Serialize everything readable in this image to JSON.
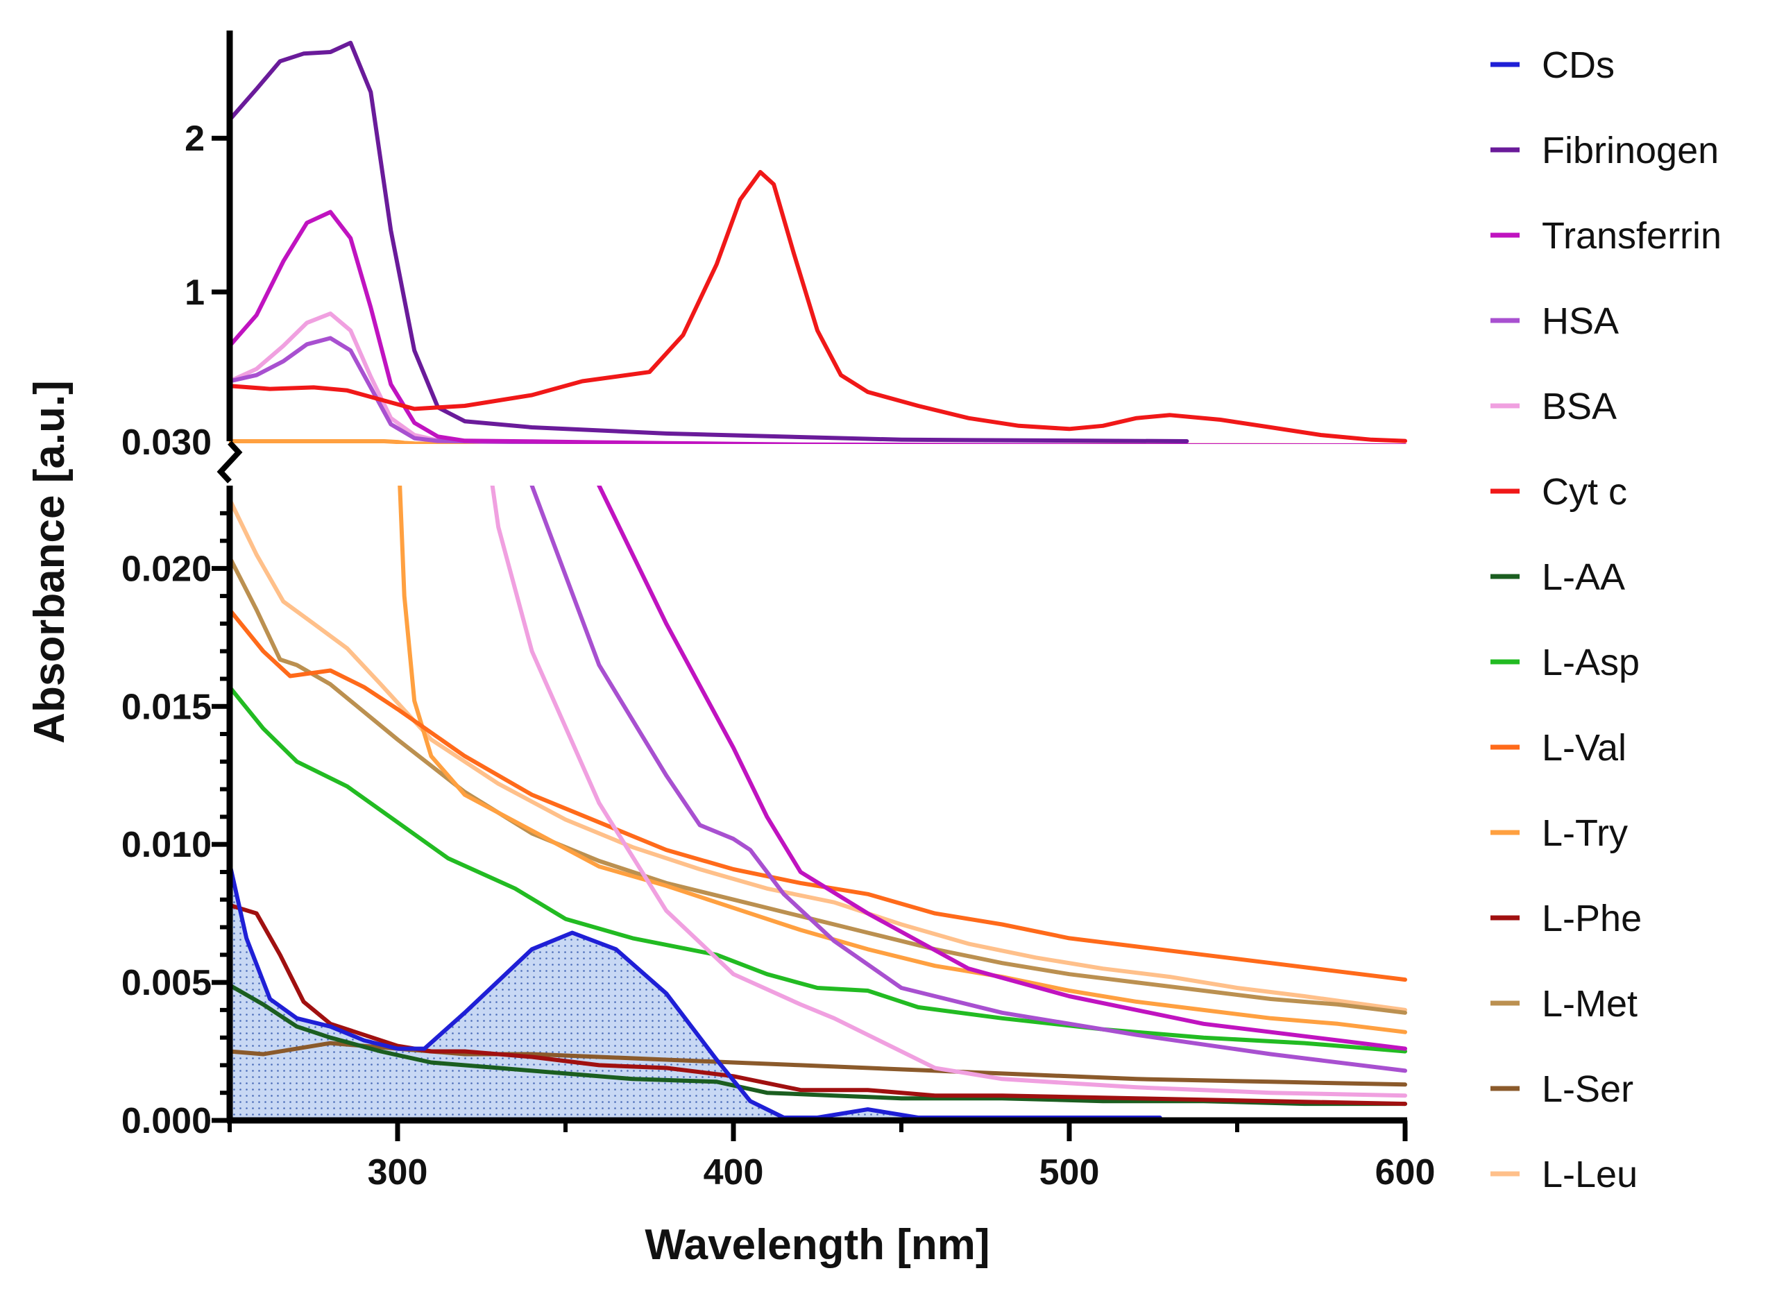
{
  "chart_data": {
    "type": "line",
    "title": "",
    "xlabel": "Wavelength [nm]",
    "ylabel": "Absorbance [a.u.]",
    "xlim": [
      250,
      600
    ],
    "x_ticks": [
      "300",
      "400",
      "500",
      "600"
    ],
    "y_axis_break_value": "0.030",
    "lower_ylim": [
      0,
      0.023
    ],
    "lower_y_ticks": [
      "0.000",
      "0.005",
      "0.010",
      "0.015",
      "0.020"
    ],
    "upper_ylim": [
      0.03,
      2.7
    ],
    "upper_y_ticks": [
      "1",
      "2"
    ],
    "shaded_series": "CDs",
    "legend_position": "right",
    "series": [
      {
        "name": "CDs",
        "color": "#1f1fd6",
        "x": [
          250,
          255,
          262,
          270,
          280,
          290,
          300,
          308,
          320,
          340,
          352,
          365,
          380,
          395,
          405,
          415,
          425,
          440,
          455,
          480,
          510,
          527
        ],
        "y": [
          0.0093,
          0.0066,
          0.0044,
          0.0037,
          0.0034,
          0.0029,
          0.0026,
          0.0026,
          0.0039,
          0.0062,
          0.0068,
          0.0062,
          0.0046,
          0.0022,
          0.0007,
          0.0001,
          0.0001,
          0.0004,
          0.0001,
          0.0001,
          0.0001,
          0.0001
        ]
      },
      {
        "name": "Fibrinogen",
        "color": "#6a1b9a",
        "x": [
          250,
          258,
          265,
          272,
          280,
          286,
          292,
          298,
          305,
          312,
          320,
          340,
          380,
          450,
          535
        ],
        "y": [
          2.12,
          2.32,
          2.5,
          2.55,
          2.56,
          2.62,
          2.3,
          1.4,
          0.62,
          0.25,
          0.16,
          0.12,
          0.08,
          0.04,
          0.03
        ]
      },
      {
        "name": "Transferrin",
        "color": "#c013c0",
        "x": [
          250,
          258,
          266,
          273,
          280,
          286,
          292,
          298,
          305,
          312,
          320,
          340,
          360,
          380,
          400,
          410,
          420,
          440,
          470,
          500,
          540,
          580,
          600
        ],
        "y": [
          0.65,
          0.85,
          1.2,
          1.45,
          1.52,
          1.35,
          0.9,
          0.4,
          0.15,
          0.06,
          0.033,
          0.0285,
          0.023,
          0.018,
          0.0135,
          0.011,
          0.009,
          0.0075,
          0.0055,
          0.0045,
          0.0035,
          0.0029,
          0.0026
        ]
      },
      {
        "name": "HSA",
        "color": "#a850d0",
        "x": [
          250,
          258,
          266,
          273,
          280,
          286,
          292,
          298,
          305,
          312,
          330,
          340,
          360,
          380,
          390,
          400,
          405,
          415,
          430,
          450,
          480,
          520,
          560,
          600
        ],
        "y": [
          0.42,
          0.46,
          0.55,
          0.66,
          0.7,
          0.62,
          0.38,
          0.14,
          0.05,
          0.032,
          0.027,
          0.023,
          0.0165,
          0.0125,
          0.0107,
          0.0102,
          0.0098,
          0.0082,
          0.0065,
          0.0048,
          0.0039,
          0.0031,
          0.0024,
          0.0018
        ]
      },
      {
        "name": "BSA",
        "color": "#f0a0e0",
        "x": [
          250,
          258,
          266,
          273,
          280,
          286,
          292,
          298,
          305,
          312,
          320,
          330,
          340,
          360,
          380,
          400,
          420,
          430,
          440,
          460,
          480,
          520,
          560,
          600
        ],
        "y": [
          0.42,
          0.5,
          0.65,
          0.8,
          0.86,
          0.75,
          0.45,
          0.18,
          0.07,
          0.035,
          0.03,
          0.0215,
          0.017,
          0.0115,
          0.0076,
          0.0053,
          0.0042,
          0.0037,
          0.0031,
          0.0019,
          0.0015,
          0.0012,
          0.001,
          0.0009
        ]
      },
      {
        "name": "Cyt c",
        "color": "#f01818",
        "x": [
          250,
          262,
          275,
          285,
          295,
          305,
          320,
          340,
          355,
          365,
          375,
          385,
          395,
          402,
          408,
          412,
          418,
          425,
          432,
          440,
          455,
          470,
          485,
          500,
          510,
          520,
          530,
          545,
          560,
          575,
          590,
          600
        ],
        "y": [
          0.39,
          0.37,
          0.38,
          0.36,
          0.3,
          0.24,
          0.26,
          0.33,
          0.42,
          0.45,
          0.48,
          0.72,
          1.18,
          1.6,
          1.78,
          1.7,
          1.25,
          0.75,
          0.46,
          0.35,
          0.26,
          0.18,
          0.13,
          0.11,
          0.13,
          0.18,
          0.2,
          0.17,
          0.12,
          0.07,
          0.04,
          0.032
        ]
      },
      {
        "name": "L-AA",
        "color": "#1b5e20",
        "x": [
          250,
          260,
          270,
          280,
          295,
          310,
          330,
          350,
          370,
          395,
          410,
          430,
          450,
          480,
          510,
          540,
          570,
          600
        ],
        "y": [
          0.0049,
          0.0042,
          0.0034,
          0.003,
          0.0025,
          0.0021,
          0.0019,
          0.0017,
          0.0015,
          0.0014,
          0.001,
          0.0009,
          0.0008,
          0.0008,
          0.0007,
          0.0007,
          0.0006,
          0.0006
        ]
      },
      {
        "name": "L-Asp",
        "color": "#22bb22",
        "x": [
          250,
          260,
          270,
          285,
          300,
          315,
          335,
          350,
          370,
          395,
          410,
          425,
          440,
          455,
          480,
          510,
          540,
          570,
          600
        ],
        "y": [
          0.0157,
          0.0142,
          0.013,
          0.0121,
          0.0108,
          0.0095,
          0.0084,
          0.0073,
          0.0066,
          0.006,
          0.0053,
          0.0048,
          0.0047,
          0.0041,
          0.0037,
          0.0033,
          0.003,
          0.0028,
          0.0025
        ]
      },
      {
        "name": "L-Val",
        "color": "#ff6a1a",
        "x": [
          250,
          260,
          268,
          280,
          290,
          300,
          320,
          340,
          360,
          380,
          400,
          420,
          440,
          460,
          480,
          500,
          520,
          540,
          560,
          580,
          600
        ],
        "y": [
          0.0185,
          0.017,
          0.0161,
          0.0163,
          0.0157,
          0.0149,
          0.0132,
          0.0118,
          0.0108,
          0.0098,
          0.0091,
          0.0086,
          0.0082,
          0.0075,
          0.0071,
          0.0066,
          0.0063,
          0.006,
          0.0057,
          0.0054,
          0.0051
        ]
      },
      {
        "name": "L-Try",
        "color": "#ffa040",
        "x": [
          250,
          265,
          280,
          290,
          296,
          300,
          302,
          305,
          310,
          320,
          340,
          360,
          380,
          400,
          420,
          440,
          460,
          480,
          500,
          520,
          540,
          560,
          580,
          600
        ],
        "y": [
          0.03,
          0.03,
          0.03,
          0.03,
          0.03,
          0.025,
          0.019,
          0.0152,
          0.0132,
          0.0118,
          0.0105,
          0.0092,
          0.0085,
          0.0077,
          0.0069,
          0.0062,
          0.0056,
          0.0052,
          0.0047,
          0.0043,
          0.004,
          0.0037,
          0.0035,
          0.0032
        ]
      },
      {
        "name": "L-Phe",
        "color": "#a01010",
        "x": [
          250,
          258,
          265,
          272,
          280,
          290,
          300,
          310,
          320,
          340,
          360,
          380,
          400,
          420,
          440,
          460,
          480,
          520,
          560,
          600
        ],
        "y": [
          0.0078,
          0.0075,
          0.006,
          0.0043,
          0.0035,
          0.0031,
          0.0027,
          0.0025,
          0.0025,
          0.0023,
          0.002,
          0.0019,
          0.0016,
          0.0011,
          0.0011,
          0.0009,
          0.0009,
          0.0008,
          0.0007,
          0.0006
        ]
      },
      {
        "name": "L-Met",
        "color": "#bb9050",
        "x": [
          250,
          258,
          265,
          270,
          280,
          290,
          300,
          320,
          340,
          360,
          380,
          400,
          420,
          440,
          460,
          480,
          500,
          520,
          540,
          560,
          580,
          600
        ],
        "y": [
          0.0204,
          0.0185,
          0.0167,
          0.0165,
          0.0158,
          0.0148,
          0.0138,
          0.0119,
          0.0104,
          0.0094,
          0.0086,
          0.008,
          0.0074,
          0.0068,
          0.0062,
          0.0057,
          0.0053,
          0.005,
          0.0047,
          0.0044,
          0.0042,
          0.0039
        ]
      },
      {
        "name": "L-Ser",
        "color": "#8b5a2b",
        "x": [
          250,
          260,
          270,
          280,
          300,
          320,
          340,
          360,
          380,
          400,
          420,
          440,
          460,
          480,
          520,
          560,
          600
        ],
        "y": [
          0.0025,
          0.0024,
          0.0026,
          0.0028,
          0.0026,
          0.0024,
          0.0024,
          0.0023,
          0.0022,
          0.0021,
          0.002,
          0.0019,
          0.0018,
          0.0017,
          0.0015,
          0.0014,
          0.0013
        ]
      },
      {
        "name": "L-Leu",
        "color": "#ffc08a",
        "x": [
          250,
          258,
          266,
          275,
          285,
          295,
          310,
          330,
          350,
          370,
          390,
          410,
          430,
          450,
          470,
          490,
          510,
          530,
          550,
          570,
          600
        ],
        "y": [
          0.0225,
          0.0205,
          0.0188,
          0.018,
          0.0171,
          0.0158,
          0.0138,
          0.0122,
          0.0109,
          0.0099,
          0.0091,
          0.0084,
          0.0079,
          0.0071,
          0.0064,
          0.0059,
          0.0055,
          0.0052,
          0.0048,
          0.0045,
          0.004
        ]
      }
    ]
  }
}
